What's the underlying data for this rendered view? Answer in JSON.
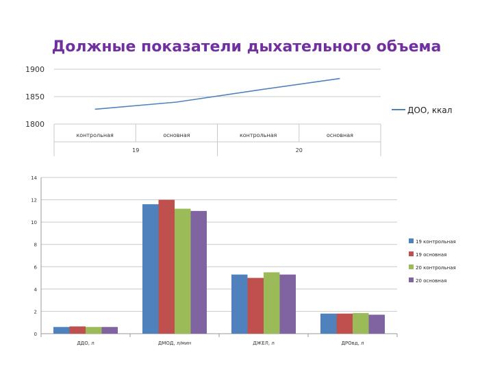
{
  "title": "Должные показатели дыхательного объема",
  "chart_data": [
    {
      "type": "line",
      "title": "",
      "y_ticks": [
        "1900",
        "1850",
        "1800"
      ],
      "ylim": [
        1800,
        1900
      ],
      "categories": [
        "контрольная",
        "основная",
        "контрольная",
        "основная"
      ],
      "groups": [
        "19",
        "20"
      ],
      "series": [
        {
          "name": "ДОО, ккал",
          "color": "#4f81bd",
          "values": [
            1827,
            1840,
            1862,
            1883
          ]
        }
      ],
      "legend": "right"
    },
    {
      "type": "bar",
      "title": "",
      "y_ticks": [
        "0",
        "2",
        "4",
        "6",
        "8",
        "10",
        "12",
        "14"
      ],
      "ylim": [
        0,
        14
      ],
      "categories": [
        "ДДО, л",
        "ДМОД, л/мин",
        "ДЖЕЛ, л",
        "ДРОвд, л"
      ],
      "series": [
        {
          "name": "19 контрольная",
          "color": "#4f81bd",
          "values": [
            0.6,
            11.6,
            5.3,
            1.8
          ]
        },
        {
          "name": "19 основная",
          "color": "#c0504d",
          "values": [
            0.65,
            12.0,
            5.0,
            1.8
          ]
        },
        {
          "name": "20 контрольная",
          "color": "#9bbb59",
          "values": [
            0.6,
            11.2,
            5.5,
            1.85
          ]
        },
        {
          "name": "20 основная",
          "color": "#8064a2",
          "values": [
            0.6,
            11.0,
            5.3,
            1.7
          ]
        }
      ],
      "legend": "right"
    }
  ]
}
